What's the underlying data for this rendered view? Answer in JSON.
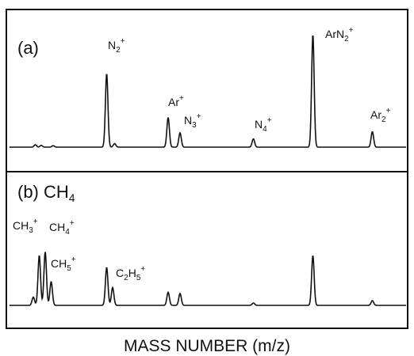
{
  "chart_data": {
    "type": "line",
    "xlabel": "MASS  NUMBER (m/z)",
    "ylabel": "",
    "panels": [
      {
        "label": "(a)",
        "label_sub": "",
        "series": [
          {
            "peaks": [
              {
                "pos": 0.065,
                "h": 0.02
              },
              {
                "pos": 0.08,
                "h": 0.015
              },
              {
                "pos": 0.11,
                "h": 0.012
              },
              {
                "pos": 0.245,
                "h": 0.62
              },
              {
                "pos": 0.265,
                "h": 0.03
              },
              {
                "pos": 0.4,
                "h": 0.25
              },
              {
                "pos": 0.43,
                "h": 0.12
              },
              {
                "pos": 0.615,
                "h": 0.07
              },
              {
                "pos": 0.765,
                "h": 0.95
              },
              {
                "pos": 0.915,
                "h": 0.13
              }
            ]
          }
        ],
        "annotations": [
          {
            "base": "N",
            "sub": "2",
            "sup": "+"
          },
          {
            "base": "Ar",
            "sub": "",
            "sup": "+"
          },
          {
            "base": "N",
            "sub": "3",
            "sup": "+"
          },
          {
            "base": "N",
            "sub": "4",
            "sup": "+"
          },
          {
            "base": "ArN",
            "sub": "2",
            "sup": "+"
          },
          {
            "base": "Ar",
            "sub": "2",
            "sup": "+"
          }
        ]
      },
      {
        "label": "(b) CH",
        "label_sub": "4",
        "series": [
          {
            "peaks": [
              {
                "pos": 0.06,
                "h": 0.07
              },
              {
                "pos": 0.075,
                "h": 0.42
              },
              {
                "pos": 0.09,
                "h": 0.45
              },
              {
                "pos": 0.105,
                "h": 0.2
              },
              {
                "pos": 0.245,
                "h": 0.32
              },
              {
                "pos": 0.26,
                "h": 0.15
              },
              {
                "pos": 0.4,
                "h": 0.11
              },
              {
                "pos": 0.43,
                "h": 0.1
              },
              {
                "pos": 0.615,
                "h": 0.02
              },
              {
                "pos": 0.765,
                "h": 0.42
              },
              {
                "pos": 0.915,
                "h": 0.04
              }
            ]
          }
        ],
        "annotations": [
          {
            "base": "CH",
            "sub": "3",
            "sup": "+"
          },
          {
            "base": "CH",
            "sub": "4",
            "sup": "+"
          },
          {
            "base": "CH",
            "sub": "5",
            "sup": "+"
          },
          {
            "base": "C",
            "sub": "2",
            "mid": "H",
            "sub2": "5",
            "sup": "+"
          }
        ]
      }
    ]
  }
}
